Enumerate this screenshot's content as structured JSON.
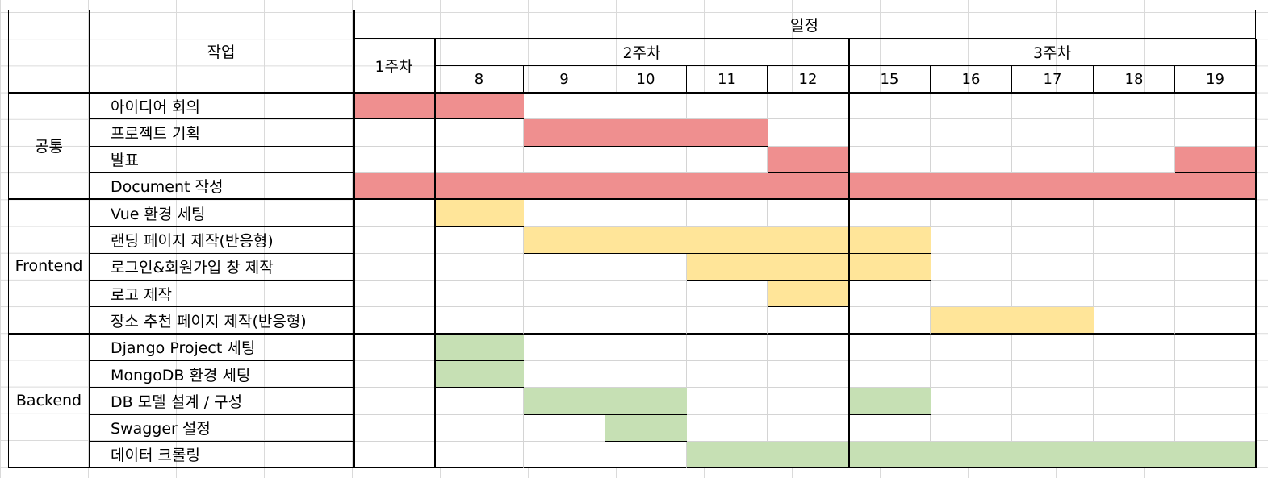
{
  "header": {
    "task_label": "작업",
    "schedule_label": "일정",
    "week1_label": "1주차",
    "week2_label": "2주차",
    "week3_label": "3주차",
    "days": [
      "8",
      "9",
      "10",
      "11",
      "12",
      "15",
      "16",
      "17",
      "18",
      "19"
    ]
  },
  "colors": {
    "common": "#ef8f8f",
    "frontend": "#ffe599",
    "backend": "#c6e0b4"
  },
  "groups": [
    {
      "name": "공통",
      "color_key": "common",
      "tasks": [
        {
          "label": "아이디어 회의",
          "spans": [
            [
              0,
              1
            ]
          ]
        },
        {
          "label": "프로젝트 기획",
          "spans": [
            [
              2,
              4
            ]
          ]
        },
        {
          "label": "발표",
          "spans": [
            [
              5,
              5
            ],
            [
              10,
              10
            ]
          ]
        },
        {
          "label": "Document 작성",
          "spans": [
            [
              0,
              10
            ]
          ]
        }
      ]
    },
    {
      "name": "Frontend",
      "color_key": "frontend",
      "tasks": [
        {
          "label": "Vue 환경 세팅",
          "spans": [
            [
              1,
              1
            ]
          ]
        },
        {
          "label": "랜딩 페이지 제작(반응형)",
          "spans": [
            [
              2,
              6
            ]
          ]
        },
        {
          "label": "로그인&회원가입 창 제작",
          "spans": [
            [
              4,
              6
            ]
          ]
        },
        {
          "label": "로고 제작",
          "spans": [
            [
              5,
              5
            ]
          ]
        },
        {
          "label": "장소 추천 페이지 제작(반응형)",
          "spans": [
            [
              7,
              8
            ]
          ]
        }
      ]
    },
    {
      "name": "Backend",
      "color_key": "backend",
      "tasks": [
        {
          "label": "Django Project 세팅",
          "spans": [
            [
              1,
              1
            ]
          ]
        },
        {
          "label": "MongoDB 환경 세팅",
          "spans": [
            [
              1,
              1
            ]
          ]
        },
        {
          "label": "DB 모델 설계 / 구성",
          "spans": [
            [
              2,
              3
            ],
            [
              6,
              6
            ]
          ]
        },
        {
          "label": "Swagger 설정",
          "spans": [
            [
              3,
              3
            ]
          ]
        },
        {
          "label": "데이터 크롤링",
          "spans": [
            [
              4,
              10
            ]
          ]
        }
      ]
    }
  ]
}
